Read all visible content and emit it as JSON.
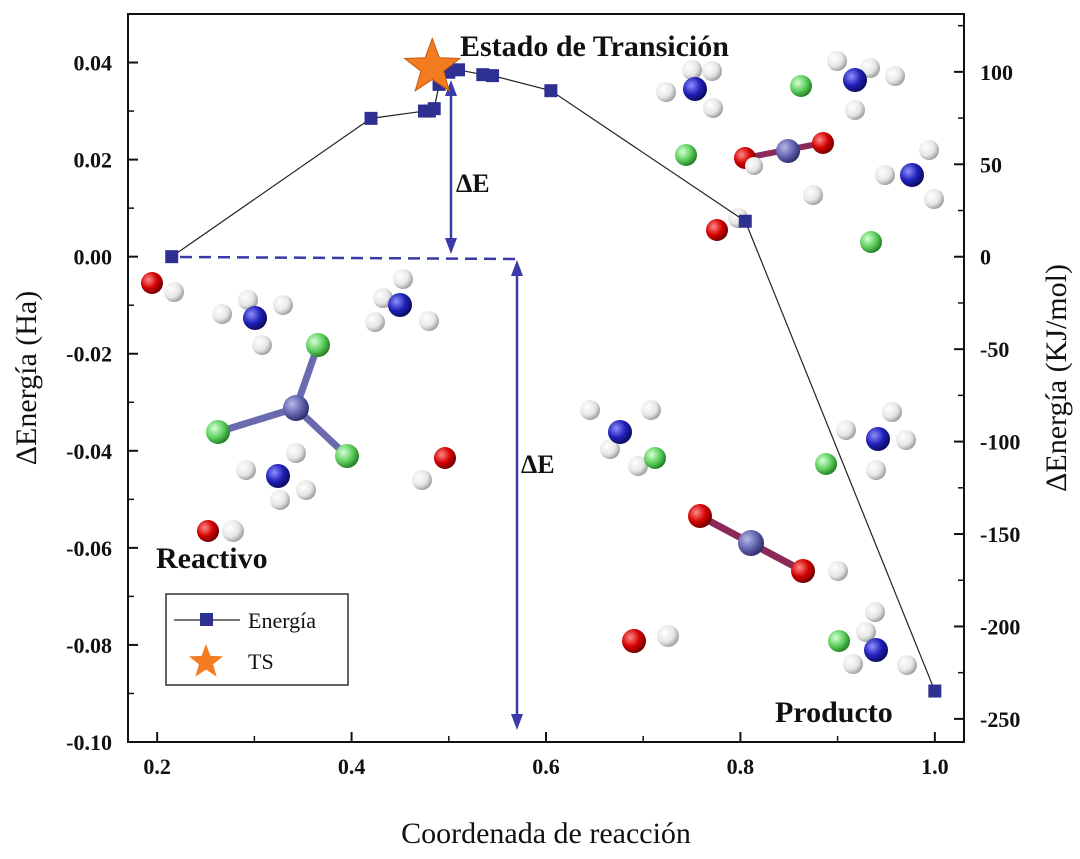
{
  "chart_data": {
    "type": "line",
    "xlabel": "Coordenada de reacción",
    "ylabel": "ΔEnergía (Ha)",
    "ylabel_right": "ΔEnergía (KJ/mol)",
    "xlim": [
      0.17,
      1.03
    ],
    "ylim": [
      -0.1,
      0.05
    ],
    "ylim_right": [
      -262.5,
      131.3
    ],
    "x_ticks": [
      "0.2",
      "0.4",
      "0.6",
      "0.8",
      "1.0"
    ],
    "y_ticks": [
      "-0.10",
      "-0.08",
      "-0.06",
      "-0.04",
      "-0.02",
      "0.00",
      "0.02",
      "0.04"
    ],
    "y_ticks_right": [
      "-250",
      "-200",
      "-150",
      "-100",
      "-50",
      "0",
      "50",
      "100"
    ],
    "grid": false,
    "legend_position": "bottom-left",
    "series": [
      {
        "name": "Energía",
        "color": "#2e3192",
        "x": [
          0.215,
          0.42,
          0.475,
          0.48,
          0.485,
          0.49,
          0.5,
          0.51,
          0.535,
          0.545,
          0.605,
          0.805,
          1.0
        ],
        "y": [
          0.0,
          0.0285,
          0.03,
          0.03,
          0.0305,
          0.0355,
          0.038,
          0.0385,
          0.0375,
          0.0373,
          0.0342,
          0.0073,
          -0.0895
        ]
      }
    ],
    "ts": {
      "name": "TS",
      "x": 0.483,
      "y": 0.039,
      "color": "#f47c20"
    },
    "annotations": {
      "transition": "Estado de Transición",
      "reactant": "Reactivo",
      "product": "Producto",
      "delta1": "ΔE",
      "delta2": "ΔE"
    }
  }
}
